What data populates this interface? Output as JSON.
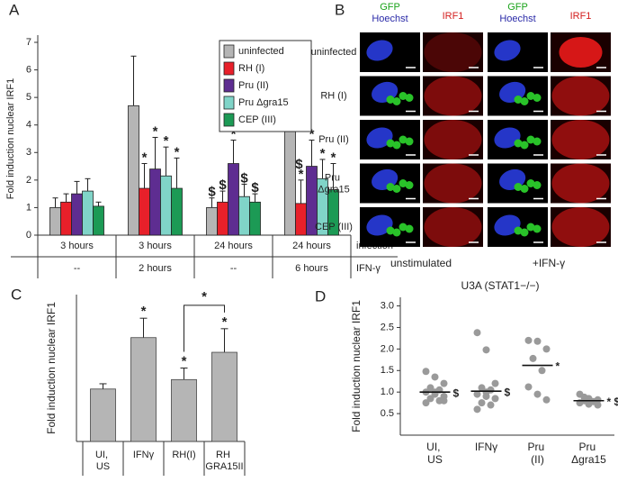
{
  "chart_data": [
    {
      "type": "bar",
      "panel_label": "A",
      "y_label": "Fold induction nuclear IRF1",
      "ylim": [
        0,
        7
      ],
      "yticks": [
        0,
        1,
        2,
        3,
        4,
        5,
        6,
        7
      ],
      "categories": [
        "3 hours",
        "3 hours",
        "24 hours",
        "24 hours"
      ],
      "categories_2": [
        "--",
        "2 hours",
        "--",
        "6 hours"
      ],
      "row_labels": [
        "infection",
        "IFN-γ"
      ],
      "legend": "upper right",
      "series": [
        {
          "name": "uninfected",
          "color": "#b5b5b5",
          "values": [
            1.0,
            4.7,
            1.0,
            4.75
          ],
          "errors": [
            0.35,
            1.8,
            0.35,
            1.85
          ],
          "significance": [
            null,
            null,
            "$",
            "$"
          ]
        },
        {
          "name": "RH (I)",
          "color": "#e8202a",
          "values": [
            1.2,
            1.7,
            1.2,
            1.15
          ],
          "errors": [
            0.3,
            0.9,
            0.4,
            0.85
          ],
          "significance": [
            null,
            "*",
            "$",
            "$ *"
          ]
        },
        {
          "name": "Pru (II)",
          "color": "#5e2d91",
          "values": [
            1.5,
            2.4,
            2.6,
            2.5
          ],
          "errors": [
            0.45,
            1.15,
            0.85,
            0.95
          ],
          "significance": [
            null,
            "*",
            "*",
            "*"
          ]
        },
        {
          "name": "Pru Δgra15",
          "color": "#80d4c8",
          "values": [
            1.6,
            2.15,
            1.4,
            2.05
          ],
          "errors": [
            0.45,
            1.05,
            0.45,
            0.7
          ],
          "significance": [
            null,
            "*",
            "$",
            "*"
          ]
        },
        {
          "name": "CEP (III)",
          "color": "#1c9a55",
          "values": [
            1.05,
            1.7,
            1.2,
            1.65
          ],
          "errors": [
            0.15,
            1.1,
            0.3,
            0.95
          ],
          "significance": [
            null,
            "*",
            "$",
            "*"
          ]
        }
      ]
    },
    {
      "type": "bar",
      "panel_label": "C",
      "y_label": "Fold induction nuclear IRF1",
      "ylim": [
        0,
        2.8
      ],
      "color": "#b5b5b5",
      "categories": [
        "UI, US",
        "IFNγ",
        "RH(I)",
        "RH GRA15II"
      ],
      "values": [
        1.0,
        1.98,
        1.18,
        1.7
      ],
      "errors": [
        0.1,
        0.37,
        0.22,
        0.45
      ],
      "significance": [
        null,
        "*",
        "*",
        "*"
      ],
      "comparisons": [
        {
          "from": 2,
          "to": 3,
          "label": "*"
        }
      ]
    },
    {
      "type": "strip",
      "panel_label": "D",
      "title": "U3A (STAT1−/−)",
      "y_label": "Fold induction nuclear IRF1",
      "ylim": [
        0,
        3.2
      ],
      "yticks": [
        {
          "value": 0.5,
          "label": "0.5"
        },
        {
          "value": 1,
          "label": "1.0"
        },
        {
          "value": 1.5,
          "label": "1.5"
        },
        {
          "value": 2,
          "label": "2.0"
        },
        {
          "value": 2.5,
          "label": "2.5"
        },
        {
          "value": 3,
          "label": "3.0"
        }
      ],
      "categories": [
        "UI, US",
        "IFNγ",
        "Pru (II)",
        "Pru Δgra15"
      ],
      "color": "#9a9a9a",
      "points": [
        [
          1.48,
          1.35,
          1.2,
          1.1,
          1.05,
          1.0,
          0.95,
          0.9,
          0.85,
          0.8,
          0.75,
          1.0,
          0.8
        ],
        [
          2.38,
          1.98,
          1.2,
          1.1,
          1.05,
          0.95,
          0.9,
          0.85,
          0.75,
          0.7,
          0.6,
          1.0
        ],
        [
          2.2,
          2.18,
          2.0,
          1.78,
          1.5,
          1.12,
          0.95,
          0.82
        ],
        [
          0.95,
          0.85,
          0.82,
          0.8,
          0.78,
          0.75,
          0.72,
          0.7,
          0.88
        ]
      ],
      "means": [
        1.0,
        1.02,
        1.62,
        0.8
      ],
      "significance": [
        "$",
        "$",
        "*",
        "* $"
      ]
    }
  ],
  "micrographs": {
    "panel_label": "B",
    "gfp": "GFP",
    "hoechst": "Hoechst",
    "irf1": "IRF1",
    "rows": [
      "uninfected",
      "RH (I)",
      "Pru (II)",
      "Pru Δgra15",
      "CEP (III)"
    ],
    "conditions": [
      "unstimulated",
      "+IFN-γ"
    ]
  }
}
